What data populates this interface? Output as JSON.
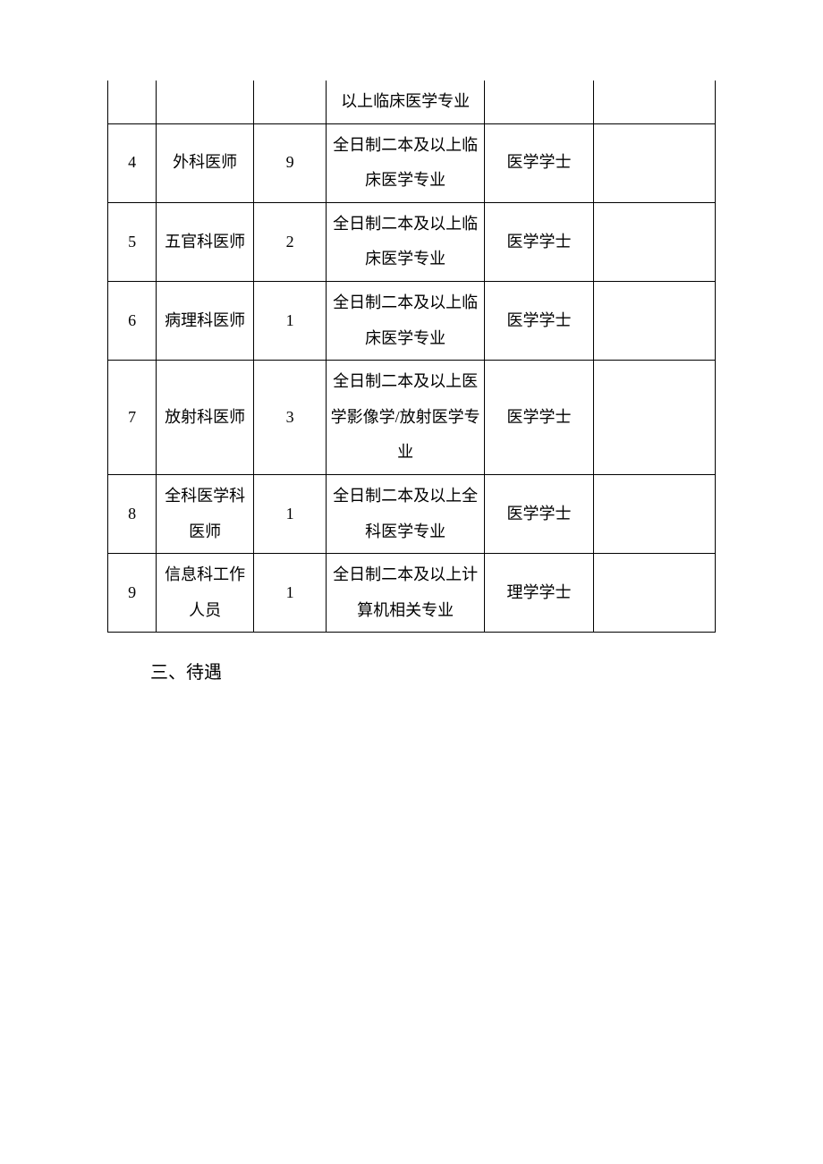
{
  "table": {
    "columns": [
      {
        "key": "index",
        "width_pct": 8
      },
      {
        "key": "position",
        "width_pct": 16
      },
      {
        "key": "count",
        "width_pct": 12
      },
      {
        "key": "requirement",
        "width_pct": 26
      },
      {
        "key": "degree",
        "width_pct": 18
      },
      {
        "key": "remark",
        "width_pct": 20
      }
    ],
    "border_color": "#000000",
    "background_color": "#ffffff",
    "font_family": "SimSun",
    "font_size_pt": 14,
    "line_height": 2.2,
    "text_color": "#000000",
    "rows": [
      {
        "index": "",
        "position": "",
        "count": "",
        "requirement": "以上临床医学专业",
        "degree": "",
        "remark": "",
        "is_partial": true
      },
      {
        "index": "4",
        "position": "外科医师",
        "count": "9",
        "requirement": "全日制二本及以上临床医学专业",
        "degree": "医学学士",
        "remark": ""
      },
      {
        "index": "5",
        "position": "五官科医师",
        "count": "2",
        "requirement": "全日制二本及以上临床医学专业",
        "degree": "医学学士",
        "remark": ""
      },
      {
        "index": "6",
        "position": "病理科医师",
        "count": "1",
        "requirement": "全日制二本及以上临床医学专业",
        "degree": "医学学士",
        "remark": ""
      },
      {
        "index": "7",
        "position": "放射科医师",
        "count": "3",
        "requirement": "全日制二本及以上医学影像学/放射医学专业",
        "degree": "医学学士",
        "remark": ""
      },
      {
        "index": "8",
        "position": "全科医学科医师",
        "count": "1",
        "requirement": "全日制二本及以上全科医学专业",
        "degree": "医学学士",
        "remark": ""
      },
      {
        "index": "9",
        "position": "信息科工作人员",
        "count": "1",
        "requirement": "全日制二本及以上计算机相关专业",
        "degree": "理学学士",
        "remark": ""
      }
    ]
  },
  "footer": {
    "text": "三、待遇"
  }
}
